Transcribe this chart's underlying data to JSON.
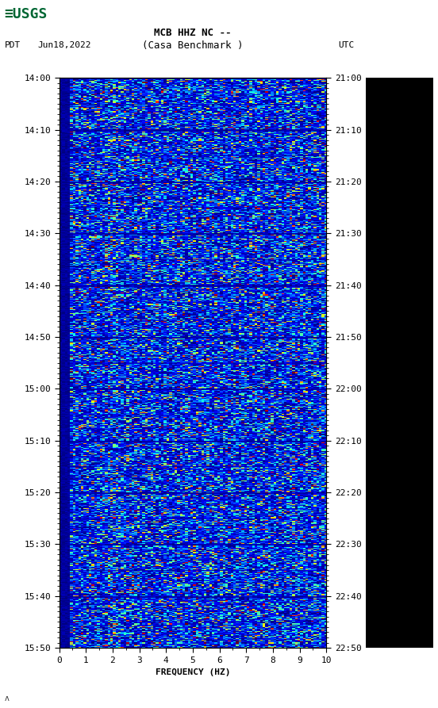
{
  "title_line1": "MCB HHZ NC --",
  "title_line2": "(Casa Benchmark )",
  "left_label": "PDT",
  "date_label": "Jun18,2022",
  "right_label": "UTC",
  "time_left_ticks": [
    "14:00",
    "14:10",
    "14:20",
    "14:30",
    "14:40",
    "14:50",
    "15:00",
    "15:10",
    "15:20",
    "15:30",
    "15:40",
    "15:50"
  ],
  "time_right_ticks": [
    "21:00",
    "21:10",
    "21:20",
    "21:30",
    "21:40",
    "21:50",
    "22:00",
    "22:10",
    "22:20",
    "22:30",
    "22:40",
    "22:50"
  ],
  "freq_label": "FREQUENCY (HZ)",
  "freq_min": 0,
  "freq_max": 10,
  "freq_ticks": [
    0,
    1,
    2,
    3,
    4,
    5,
    6,
    7,
    8,
    9,
    10
  ],
  "n_time_bins": 660,
  "n_freq_bins": 100,
  "bg_color": "#ffffff",
  "black_panel_color": "#000000",
  "random_seed": 42
}
